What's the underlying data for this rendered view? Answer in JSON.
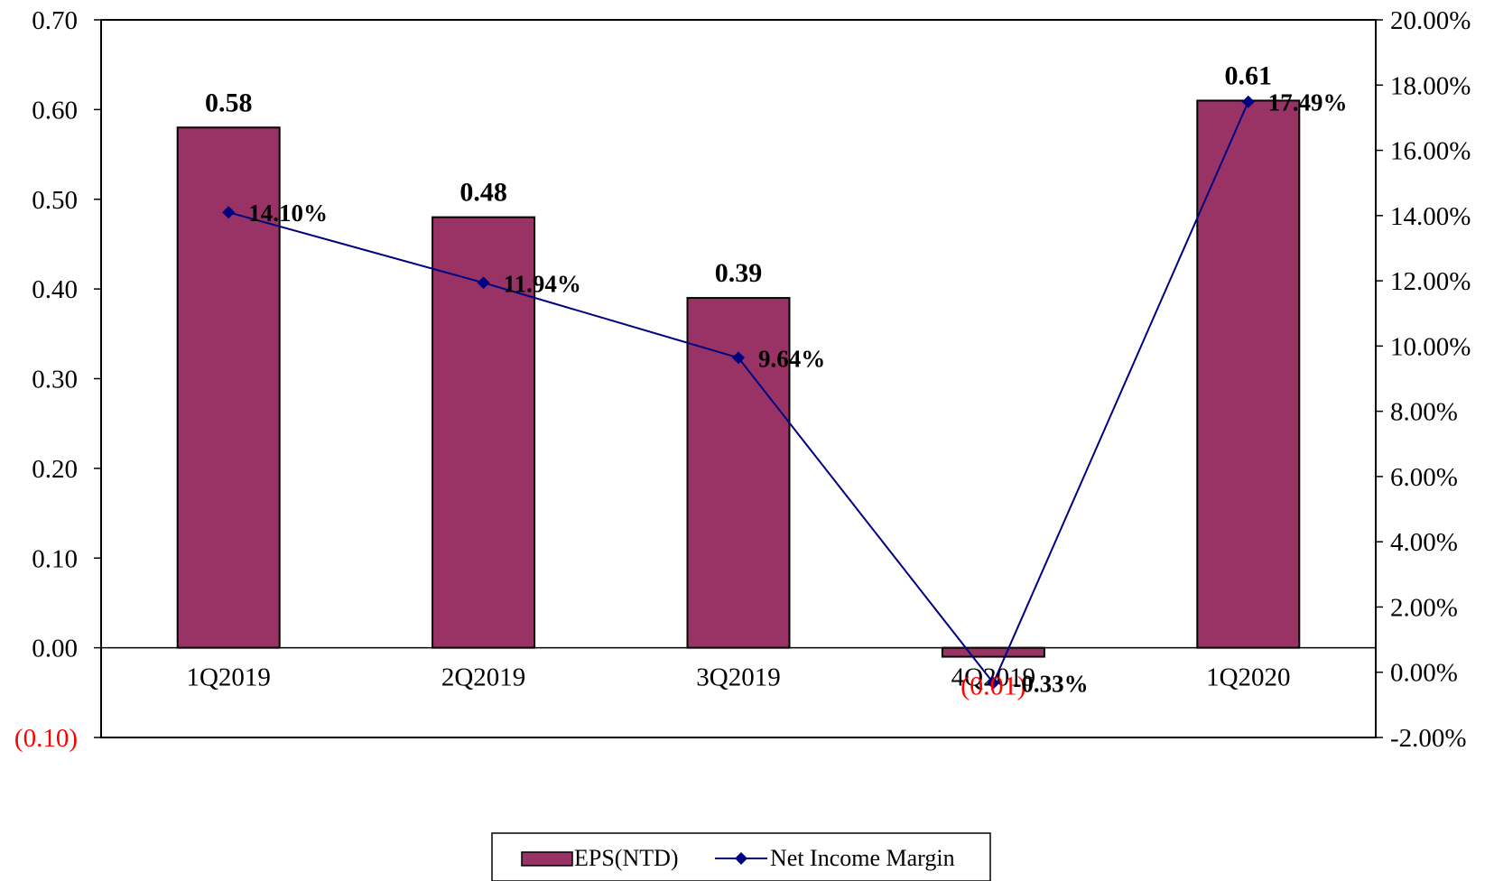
{
  "chart_data": {
    "type": "bar",
    "categories": [
      "1Q2019",
      "2Q2019",
      "3Q2019",
      "4Q2019",
      "1Q2020"
    ],
    "series": [
      {
        "name": "EPS(NTD)",
        "type": "bar",
        "axis": "left",
        "values": [
          0.58,
          0.48,
          0.39,
          -0.01,
          0.61
        ],
        "data_labels": [
          "0.58",
          "0.48",
          "0.39",
          "(0.01)",
          "0.61"
        ]
      },
      {
        "name": "Net Income Margin",
        "type": "line",
        "axis": "right",
        "values": [
          14.1,
          11.94,
          9.64,
          -0.33,
          17.49
        ],
        "data_labels": [
          "14.10%",
          "11.94%",
          "9.64%",
          "-0.33%",
          "17.49%"
        ]
      }
    ],
    "y_left": {
      "ylim": [
        -0.1,
        0.7
      ],
      "ticks": [
        -0.1,
        0.0,
        0.1,
        0.2,
        0.3,
        0.4,
        0.5,
        0.6,
        0.7
      ],
      "tick_labels": [
        "(0.10)",
        "0.00",
        "0.10",
        "0.20",
        "0.30",
        "0.40",
        "0.50",
        "0.60",
        "0.70"
      ]
    },
    "y_right": {
      "ylim": [
        -2.0,
        20.0
      ],
      "ticks": [
        -2,
        0,
        2,
        4,
        6,
        8,
        10,
        12,
        14,
        16,
        18,
        20
      ],
      "tick_labels": [
        "-2.00%",
        "0.00%",
        "2.00%",
        "4.00%",
        "6.00%",
        "8.00%",
        "10.00%",
        "12.00%",
        "14.00%",
        "16.00%",
        "18.00%",
        "20.00%"
      ]
    },
    "legend_position": "bottom",
    "grid": false,
    "colors": {
      "bar": "#993366",
      "line": "#000080"
    }
  }
}
